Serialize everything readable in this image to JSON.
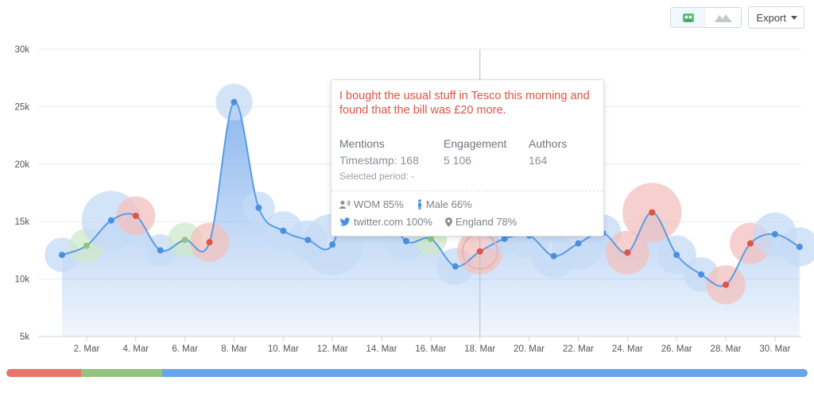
{
  "toolbar": {
    "export_label": "Export",
    "view_bubble_icon": "bubble-chart-icon",
    "view_area_icon": "area-chart-icon"
  },
  "colors": {
    "line": "#5b9be6",
    "fill_top": "#86b4ee",
    "bubble_blue": "#c5dbf6",
    "bubble_green": "#cfe8c9",
    "bubble_red": "#f3c0bd",
    "dot_blue": "#4a90e2",
    "dot_green": "#8fc77c",
    "dot_red": "#e05345"
  },
  "tooltip": {
    "quote": "I bought the usual stuff in Tesco this morning and found that the bill was £20 more.",
    "mentions_label": "Mentions",
    "mentions_value": "Timestamp: 168",
    "engagement_label": "Engagement",
    "engagement_value": "5 106",
    "authors_label": "Authors",
    "authors_value": "164",
    "selected_period": "Selected period: -",
    "wom": "WOM 85%",
    "gender": "Male 66%",
    "source": "twitter.com 100%",
    "location": "England 78%"
  },
  "scrollbar": {
    "segments": [
      {
        "color": "#e4766b",
        "fraction": 0.093
      },
      {
        "color": "#93c47d",
        "fraction": 0.101
      },
      {
        "color": "#67a5ea",
        "fraction": 0.806
      }
    ]
  },
  "chart_data": {
    "type": "area",
    "y_ticks": [
      "5k",
      "10k",
      "15k",
      "20k",
      "25k",
      "30k"
    ],
    "ylim": [
      5000,
      30000
    ],
    "x_tick_labels": [
      "2. Mar",
      "4. Mar",
      "6. Mar",
      "8. Mar",
      "10. Mar",
      "12. Mar",
      "14. Mar",
      "16. Mar",
      "18. Mar",
      "20. Mar",
      "22. Mar",
      "24. Mar",
      "26. Mar",
      "28. Mar",
      "30. Mar"
    ],
    "x_tick_days": [
      2,
      4,
      6,
      8,
      10,
      12,
      14,
      16,
      18,
      20,
      22,
      24,
      26,
      28,
      30
    ],
    "xlim_days": [
      0.03,
      31.07
    ],
    "crosshair_day": 18,
    "points": [
      {
        "day": 1,
        "value": 12100,
        "sentiment": "blue",
        "size": 0.35
      },
      {
        "day": 2,
        "value": 12900,
        "sentiment": "green",
        "size": 0.35
      },
      {
        "day": 3,
        "value": 15100,
        "sentiment": "blue",
        "size": 0.9
      },
      {
        "day": 4,
        "value": 15500,
        "sentiment": "red",
        "size": 0.45
      },
      {
        "day": 5,
        "value": 12500,
        "sentiment": "blue",
        "size": 0.3
      },
      {
        "day": 6,
        "value": 13400,
        "sentiment": "green",
        "size": 0.35
      },
      {
        "day": 7,
        "value": 13200,
        "sentiment": "red",
        "size": 0.45
      },
      {
        "day": 8,
        "value": 25400,
        "sentiment": "blue",
        "size": 0.4
      },
      {
        "day": 9,
        "value": 16200,
        "sentiment": "blue",
        "size": 0.3
      },
      {
        "day": 10,
        "value": 14200,
        "sentiment": "blue",
        "size": 0.45
      },
      {
        "day": 11,
        "value": 13400,
        "sentiment": "blue",
        "size": 0.45
      },
      {
        "day": 12,
        "value": 13000,
        "sentiment": "blue",
        "size": 0.95
      },
      {
        "day": 13,
        "value": 20000,
        "sentiment": "blue",
        "size": 0.2
      },
      {
        "day": 14,
        "value": 16500,
        "sentiment": "blue",
        "size": 0.3
      },
      {
        "day": 15,
        "value": 13300,
        "sentiment": "blue",
        "size": 0.45
      },
      {
        "day": 16,
        "value": 13500,
        "sentiment": "green",
        "size": 0.3
      },
      {
        "day": 17,
        "value": 11100,
        "sentiment": "blue",
        "size": 0.4
      },
      {
        "day": 18,
        "value": 12400,
        "sentiment": "red",
        "size": 0.6
      },
      {
        "day": 19,
        "value": 13500,
        "sentiment": "blue",
        "size": 0.3
      },
      {
        "day": 20,
        "value": 13800,
        "sentiment": "blue",
        "size": 0.6
      },
      {
        "day": 21,
        "value": 12000,
        "sentiment": "blue",
        "size": 0.55
      },
      {
        "day": 22,
        "value": 13100,
        "sentiment": "blue",
        "size": 0.75
      },
      {
        "day": 23,
        "value": 14000,
        "sentiment": "blue",
        "size": 0.4
      },
      {
        "day": 24,
        "value": 12300,
        "sentiment": "red",
        "size": 0.55
      },
      {
        "day": 25,
        "value": 15800,
        "sentiment": "red",
        "size": 0.9
      },
      {
        "day": 26,
        "value": 12100,
        "sentiment": "blue",
        "size": 0.45
      },
      {
        "day": 27,
        "value": 10400,
        "sentiment": "blue",
        "size": 0.35
      },
      {
        "day": 28,
        "value": 9500,
        "sentiment": "red",
        "size": 0.45
      },
      {
        "day": 29,
        "value": 13100,
        "sentiment": "red",
        "size": 0.5
      },
      {
        "day": 30,
        "value": 13900,
        "sentiment": "blue",
        "size": 0.55
      },
      {
        "day": 31,
        "value": 12800,
        "sentiment": "blue",
        "size": 0.45
      }
    ]
  }
}
